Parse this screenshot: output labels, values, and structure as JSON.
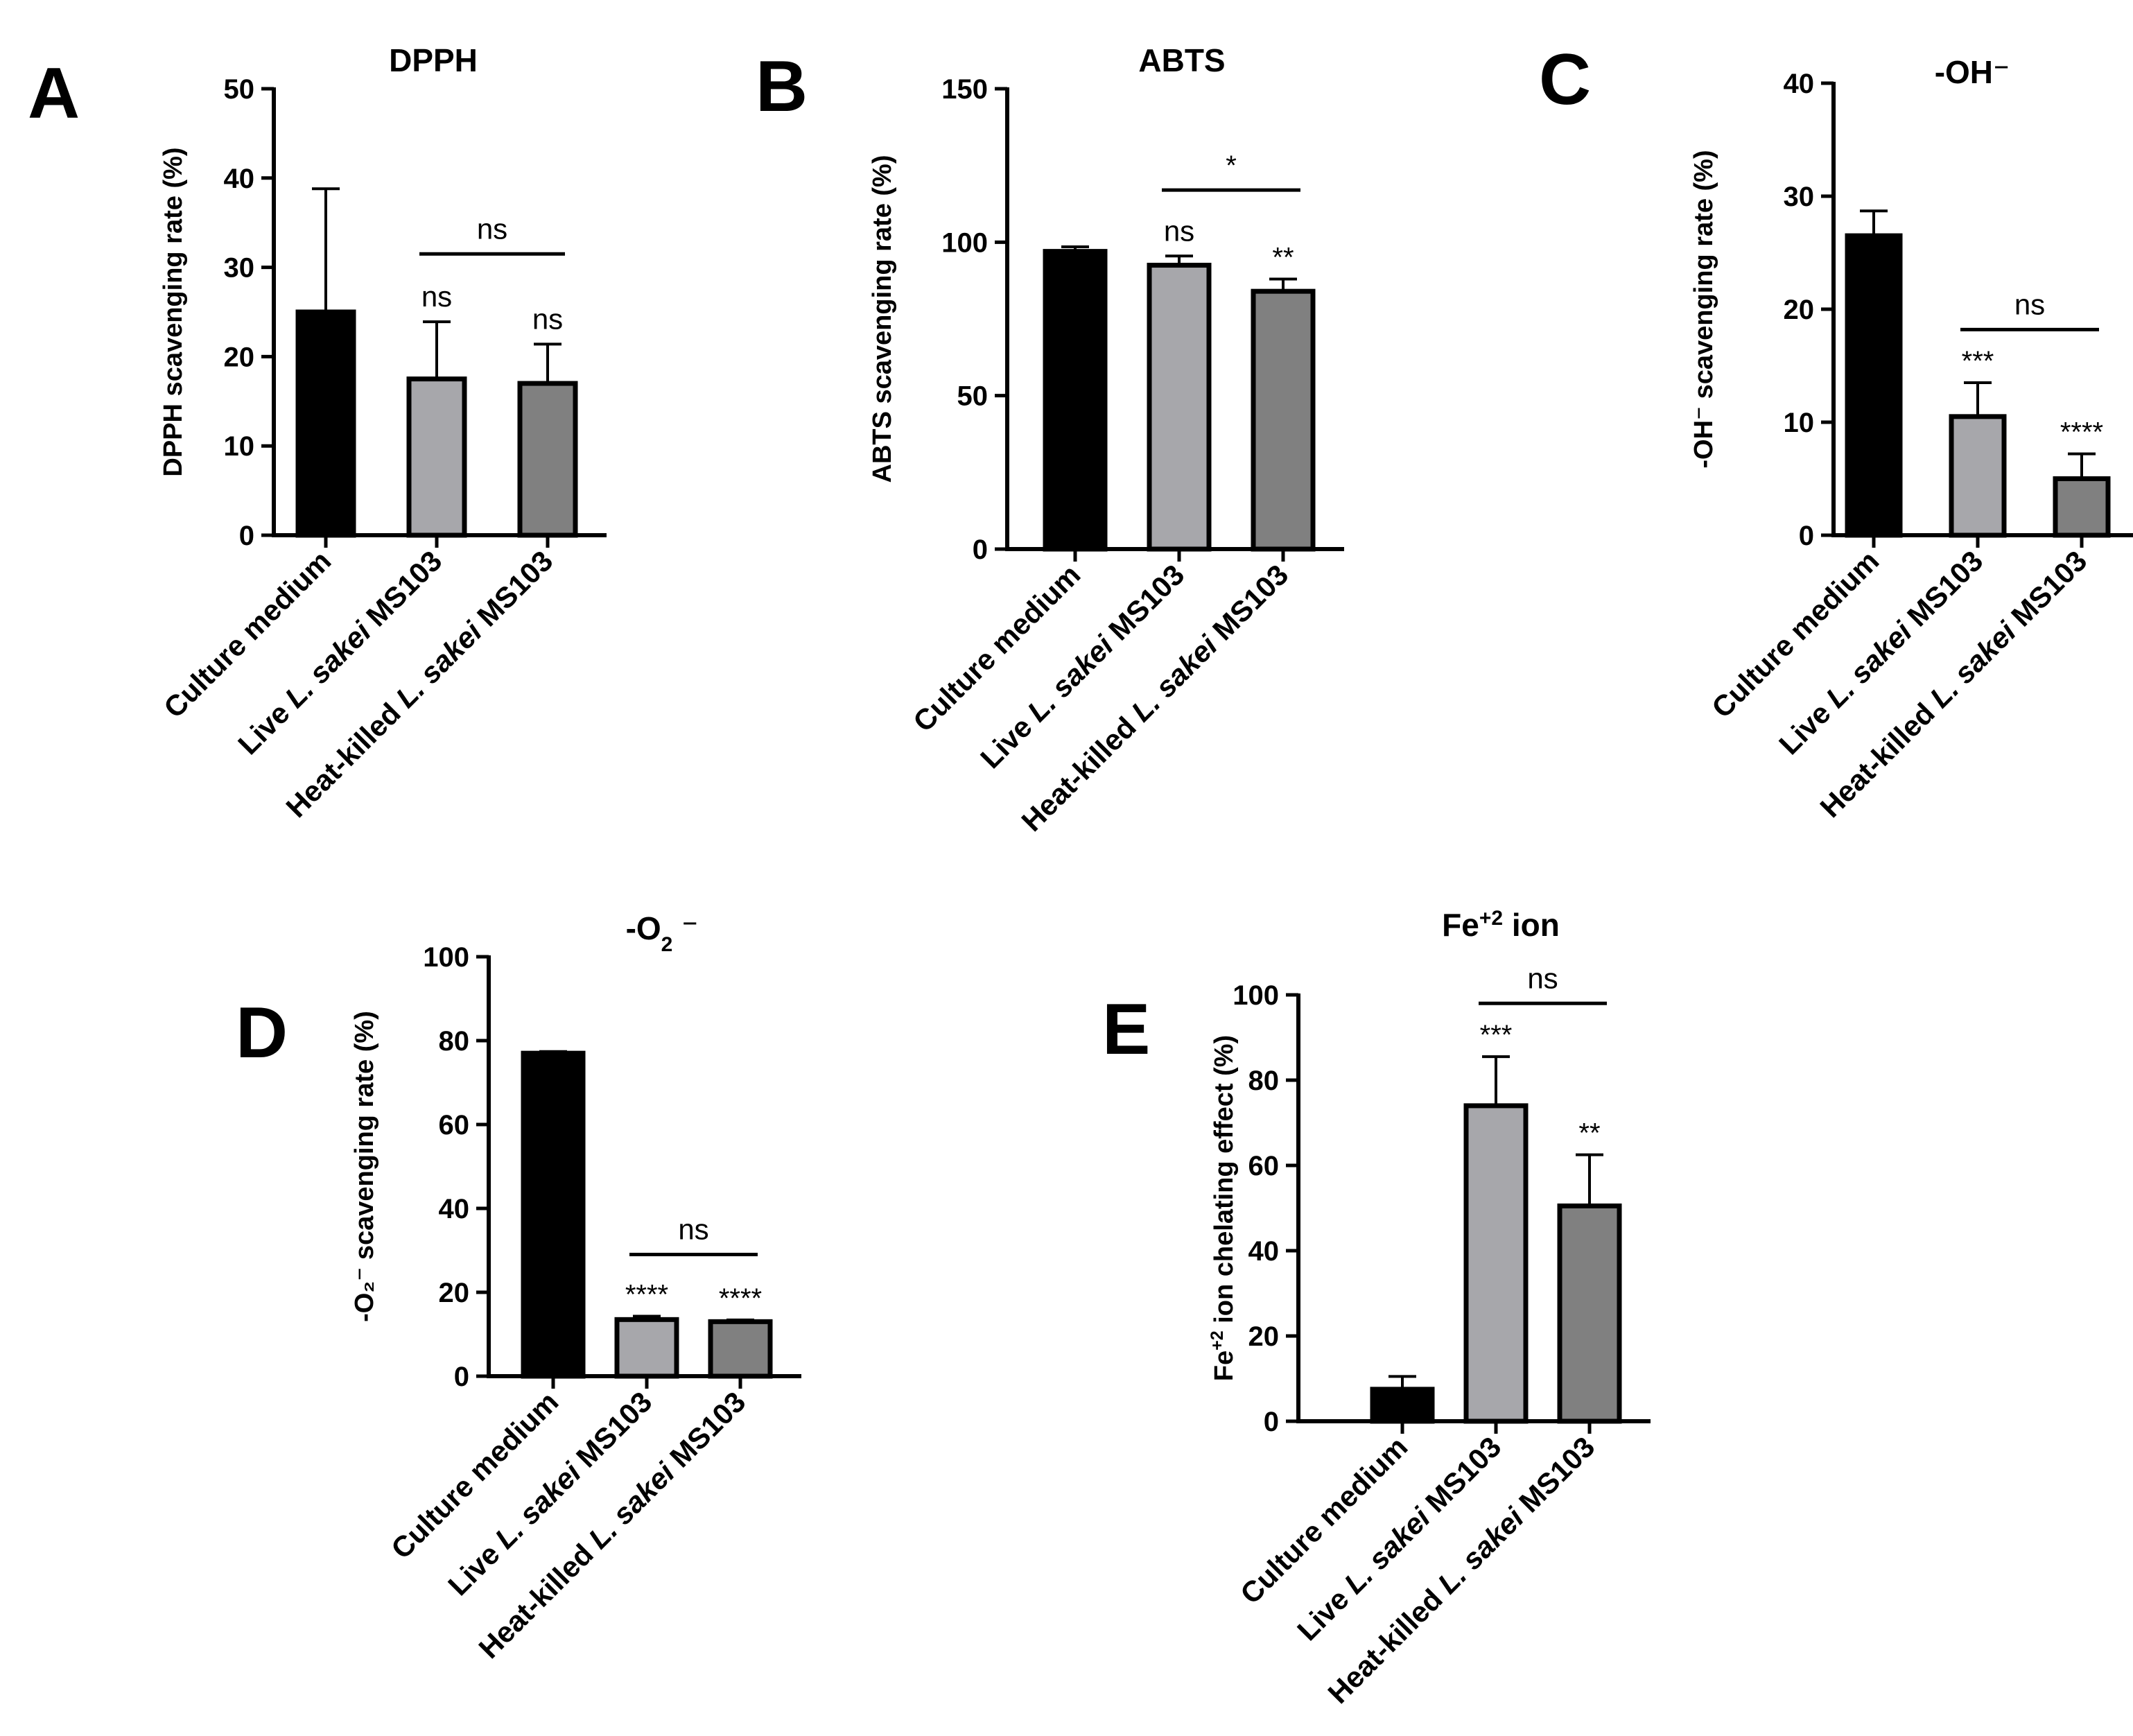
{
  "figure": {
    "colors": {
      "Culture medium": "#000000",
      "Live L. sakei MS103": "#a7a7ab",
      "Heat-killed L. sakei MS103": "#808080"
    }
  },
  "chart_data": [
    {
      "panel": "A",
      "type": "bar",
      "title": "DPPH",
      "title_parts": [
        {
          "t": "DPPH"
        }
      ],
      "ylabel_parts": [
        {
          "t": "DPPH scavenging rate (%)"
        }
      ],
      "categories": [
        "Culture medium",
        "Live L. sakei MS103",
        "Heat-killed L. sakei MS103"
      ],
      "category_parts": [
        [
          {
            "t": "Culture medium"
          }
        ],
        [
          {
            "t": "Live "
          },
          {
            "t": "L. sakei",
            "i": true
          },
          {
            "t": " MS103"
          }
        ],
        [
          {
            "t": "Heat-killed "
          },
          {
            "t": "L. sakei",
            "i": true
          },
          {
            "t": " MS103"
          }
        ]
      ],
      "values": [
        25,
        17.5,
        17
      ],
      "errors": [
        13.8,
        6.4,
        4.4
      ],
      "ylim": [
        0,
        50
      ],
      "yticks": [
        "0",
        "10",
        "20",
        "30",
        "40",
        "50"
      ],
      "bar_labels": [
        "",
        "ns",
        "ns"
      ],
      "brackets": [
        {
          "from": 1,
          "to": 2,
          "label": "ns",
          "y": 31.5
        }
      ]
    },
    {
      "panel": "B",
      "type": "bar",
      "title": "ABTS",
      "title_parts": [
        {
          "t": "ABTS"
        }
      ],
      "ylabel_parts": [
        {
          "t": "ABTS scavenging rate (%)"
        }
      ],
      "categories": [
        "Culture medium",
        "Live L. sakei MS103",
        "Heat-killed L. sakei MS103"
      ],
      "category_parts": [
        [
          {
            "t": "Culture medium"
          }
        ],
        [
          {
            "t": "Live "
          },
          {
            "t": "L. sakei",
            "i": true
          },
          {
            "t": " MS103"
          }
        ],
        [
          {
            "t": "Heat-killed "
          },
          {
            "t": "L. sakei",
            "i": true
          },
          {
            "t": " MS103"
          }
        ]
      ],
      "values": [
        97,
        92.5,
        84
      ],
      "errors": [
        1.5,
        3,
        4
      ],
      "ylim": [
        0,
        150
      ],
      "yticks": [
        "0",
        "50",
        "100",
        "150"
      ],
      "bar_labels": [
        "",
        "ns",
        "**"
      ],
      "brackets": [
        {
          "from": 1,
          "to": 2,
          "label": "*",
          "y": 117
        }
      ]
    },
    {
      "panel": "C",
      "type": "bar",
      "title": "-OH⁻",
      "title_parts": [
        {
          "t": "-OH",
          "sup_pre": "•"
        },
        {
          "t": "⁻"
        }
      ],
      "ylabel_parts": [
        {
          "t": "-OH⁻ scavenging rate (%)"
        }
      ],
      "categories": [
        "Culture medium",
        "Live L. sakei MS103",
        "Heat-killed L. sakei MS103"
      ],
      "category_parts": [
        [
          {
            "t": "Culture medium"
          }
        ],
        [
          {
            "t": "Live "
          },
          {
            "t": "L. sakei",
            "i": true
          },
          {
            "t": " MS103"
          }
        ],
        [
          {
            "t": "Heat-killed "
          },
          {
            "t": "L. sakei",
            "i": true
          },
          {
            "t": " MS103"
          }
        ]
      ],
      "values": [
        26.5,
        10.5,
        5
      ],
      "errors": [
        2.2,
        3,
        2.2
      ],
      "ylim": [
        0,
        40
      ],
      "yticks": [
        "0",
        "10",
        "20",
        "30",
        "40"
      ],
      "bar_labels": [
        "",
        "***",
        "****"
      ],
      "brackets": [
        {
          "from": 1,
          "to": 2,
          "label": "ns",
          "y": 18.2
        }
      ]
    },
    {
      "panel": "D",
      "type": "bar",
      "title": "-O2⁻",
      "title_parts": [
        {
          "t": "-O"
        },
        {
          "t": "2",
          "sub": true
        },
        {
          "t": " ⁻"
        }
      ],
      "ylabel_parts": [
        {
          "t": "-O₂⁻ scavenging rate (%)"
        }
      ],
      "categories": [
        "Culture medium",
        "Live L. sakei MS103",
        "Heat-killed L. sakei MS103"
      ],
      "category_parts": [
        [
          {
            "t": "Culture medium"
          }
        ],
        [
          {
            "t": "Live "
          },
          {
            "t": "L. sakei",
            "i": true
          },
          {
            "t": " MS103"
          }
        ],
        [
          {
            "t": "Heat-killed "
          },
          {
            "t": "L. sakei",
            "i": true
          },
          {
            "t": " MS103"
          }
        ]
      ],
      "values": [
        77,
        13.5,
        13
      ],
      "errors": [
        0.4,
        0.8,
        0.4
      ],
      "ylim": [
        0,
        100
      ],
      "yticks": [
        "0",
        "20",
        "40",
        "60",
        "80",
        "100"
      ],
      "bar_labels": [
        "",
        "****",
        "****"
      ],
      "brackets": [
        {
          "from": 1,
          "to": 2,
          "label": "ns",
          "y": 29
        }
      ]
    },
    {
      "panel": "E",
      "type": "bar",
      "title": "Fe+2 ion",
      "title_parts": [
        {
          "t": "Fe"
        },
        {
          "t": "+2",
          "sup": true
        },
        {
          "t": " ion"
        }
      ],
      "ylabel_parts": [
        {
          "t": "Fe"
        },
        {
          "t": "+2",
          "sup": true
        },
        {
          "t": " ion chelating effect (%)"
        }
      ],
      "categories": [
        "Culture medium",
        "Live L. sakei MS103",
        "Heat-killed L. sakei MS103"
      ],
      "category_parts": [
        [
          {
            "t": "Culture medium"
          }
        ],
        [
          {
            "t": "Live "
          },
          {
            "t": "L. sakei",
            "i": true
          },
          {
            "t": " MS103"
          }
        ],
        [
          {
            "t": "Heat-killed "
          },
          {
            "t": "L. sakei",
            "i": true
          },
          {
            "t": " MS103"
          }
        ]
      ],
      "values": [
        7.5,
        74,
        50.5
      ],
      "errors": [
        3,
        11.5,
        12
      ],
      "ylim": [
        0,
        100
      ],
      "yticks": [
        "0",
        "20",
        "40",
        "60",
        "80",
        "100"
      ],
      "bar_labels": [
        "",
        "***",
        "**"
      ],
      "brackets": [
        {
          "from": 1,
          "to": 2,
          "label": "ns",
          "y": 98
        }
      ]
    }
  ]
}
